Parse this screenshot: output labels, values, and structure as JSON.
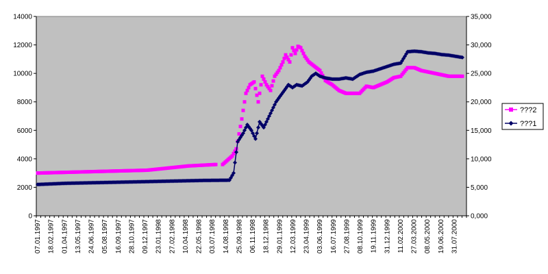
{
  "chart_data": {
    "type": "line",
    "title": "",
    "x_tick_labels": [
      "07.01.1997",
      "18.02.1997",
      "01.04.1997",
      "13.05.1997",
      "24.06.1997",
      "05.08.1997",
      "16.09.1997",
      "28.10.1997",
      "09.12.1997",
      "23.01.1998",
      "27.02.1998",
      "10.04.1998",
      "22.05.1998",
      "03.07.1998",
      "14.08.1998",
      "25.09.1998",
      "06.11.1998",
      "18.12.1998",
      "29.01.1999",
      "12.03.1999",
      "23.04.1999",
      "03.06.1999",
      "16.07.1999",
      "27.08.1999",
      "08.10.1999",
      "19.11.1999",
      "31.12.1999",
      "11.02.2000",
      "27.03.2000",
      "08.05.2000",
      "19.06.2000",
      "31.07.2000"
    ],
    "y_left": {
      "min": 0,
      "max": 14000,
      "step": 2000,
      "tick_labels": [
        "0",
        "2000",
        "4000",
        "6000",
        "8000",
        "10000",
        "12000",
        "14000"
      ]
    },
    "y_right": {
      "min": 0,
      "max": 35000,
      "step": 5000,
      "tick_labels": [
        "0,000",
        "5,000",
        "10,000",
        "15,000",
        "20,000",
        "25,000",
        "30,000",
        "35,000"
      ]
    },
    "plot_background": "#c0c0c0",
    "grid": false,
    "legend_position": "right",
    "legend": [
      {
        "label": "???2",
        "color": "#ff00ff",
        "marker": "square",
        "axis": "left"
      },
      {
        "label": "???1",
        "color": "#000066",
        "marker": "diamond",
        "axis": "right"
      }
    ],
    "series": [
      {
        "name": "???2",
        "axis": "left",
        "color": "#ff00ff",
        "marker": "square",
        "line": false,
        "x_range": [
          0,
          31
        ],
        "points": [
          [
            0,
            3000
          ],
          [
            2,
            3050
          ],
          [
            4,
            3100
          ],
          [
            6,
            3150
          ],
          [
            8,
            3200
          ],
          [
            9,
            3300
          ],
          [
            11,
            3500
          ],
          [
            12.2,
            3560
          ],
          [
            13,
            3600
          ],
          [
            null,
            null
          ],
          [
            13.5,
            3600
          ],
          [
            14.2,
            4200
          ],
          [
            14.5,
            4700
          ],
          [
            14.9,
            6800
          ],
          [
            15.2,
            8600
          ],
          [
            15.5,
            9200
          ],
          [
            15.8,
            9400
          ],
          [
            16.1,
            8000
          ],
          [
            16.4,
            9800
          ],
          [
            16.7,
            9200
          ],
          [
            17.0,
            8800
          ],
          [
            17.3,
            9800
          ],
          [
            17.6,
            10200
          ],
          [
            17.9,
            10800
          ],
          [
            18.1,
            11300
          ],
          [
            18.4,
            10800
          ],
          [
            18.6,
            11800
          ],
          [
            18.8,
            11400
          ],
          [
            19.0,
            11900
          ],
          [
            19.2,
            11800
          ],
          [
            19.5,
            11200
          ],
          [
            19.8,
            10800
          ],
          [
            20.2,
            10500
          ],
          [
            20.6,
            10200
          ],
          [
            21.0,
            9500
          ],
          [
            21.5,
            9200
          ],
          [
            22.0,
            8800
          ],
          [
            22.5,
            8600
          ],
          [
            23.0,
            8600
          ],
          [
            23.5,
            8600
          ],
          [
            24.0,
            9100
          ],
          [
            24.5,
            9000
          ],
          [
            25.0,
            9200
          ],
          [
            25.5,
            9400
          ],
          [
            26.0,
            9700
          ],
          [
            26.5,
            9800
          ],
          [
            27.0,
            10400
          ],
          [
            27.5,
            10400
          ],
          [
            28.0,
            10200
          ],
          [
            28.5,
            10100
          ],
          [
            29.0,
            10000
          ],
          [
            29.5,
            9900
          ],
          [
            30.0,
            9800
          ],
          [
            30.5,
            9800
          ],
          [
            31.0,
            9800
          ]
        ]
      },
      {
        "name": "???1",
        "axis": "right",
        "color": "#000066",
        "marker": "diamond",
        "line": true,
        "x_range": [
          0,
          31
        ],
        "points": [
          [
            0,
            5500
          ],
          [
            2,
            5700
          ],
          [
            4,
            5800
          ],
          [
            6,
            5900
          ],
          [
            8,
            6000
          ],
          [
            10,
            6100
          ],
          [
            12,
            6200
          ],
          [
            14,
            6250
          ],
          [
            14.3,
            7500
          ],
          [
            14.6,
            13000
          ],
          [
            15.0,
            14500
          ],
          [
            15.3,
            16000
          ],
          [
            15.6,
            15000
          ],
          [
            15.9,
            13500
          ],
          [
            16.2,
            16500
          ],
          [
            16.5,
            15500
          ],
          [
            16.8,
            17000
          ],
          [
            17.1,
            18500
          ],
          [
            17.4,
            20000
          ],
          [
            17.7,
            21000
          ],
          [
            18.0,
            22000
          ],
          [
            18.3,
            23000
          ],
          [
            18.6,
            22500
          ],
          [
            18.9,
            23000
          ],
          [
            19.3,
            22800
          ],
          [
            19.7,
            23500
          ],
          [
            20.0,
            24500
          ],
          [
            20.3,
            25000
          ],
          [
            20.6,
            24500
          ],
          [
            21.0,
            24200
          ],
          [
            21.5,
            24000
          ],
          [
            22.0,
            24000
          ],
          [
            22.5,
            24200
          ],
          [
            23.0,
            24000
          ],
          [
            23.5,
            24800
          ],
          [
            24.0,
            25200
          ],
          [
            24.5,
            25400
          ],
          [
            25.0,
            25800
          ],
          [
            25.5,
            26200
          ],
          [
            26.0,
            26600
          ],
          [
            26.5,
            26800
          ],
          [
            27.0,
            28800
          ],
          [
            27.5,
            28900
          ],
          [
            28.0,
            28800
          ],
          [
            28.5,
            28600
          ],
          [
            29.0,
            28500
          ],
          [
            29.5,
            28300
          ],
          [
            30.0,
            28200
          ],
          [
            30.5,
            28000
          ],
          [
            31.0,
            27800
          ]
        ]
      }
    ]
  }
}
